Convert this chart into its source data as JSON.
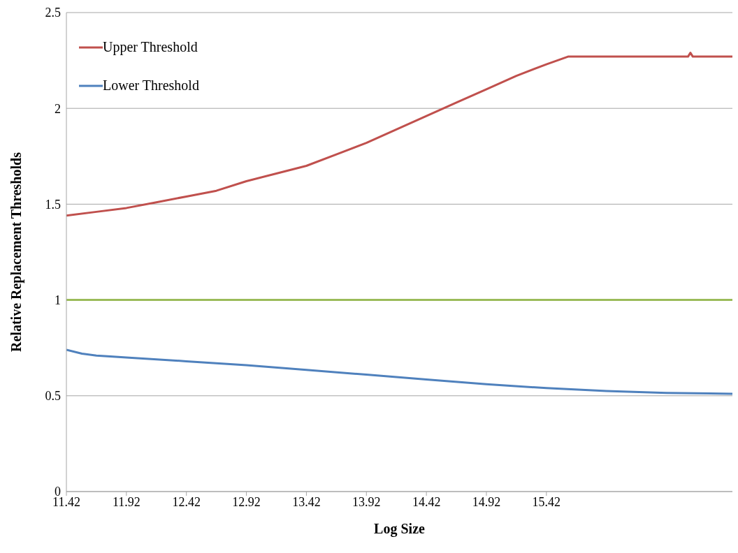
{
  "chart_data": {
    "type": "line",
    "xlabel": "Log Size",
    "ylabel": "Relative Replacement Thresholds",
    "xlim": [
      11.42,
      16.97
    ],
    "xticks": [
      11.42,
      11.92,
      12.42,
      12.92,
      13.42,
      13.92,
      14.42,
      14.92,
      15.42
    ],
    "ylim": [
      0,
      2.5
    ],
    "yticks": [
      0,
      0.5,
      1,
      1.5,
      2,
      2.5
    ],
    "grid": "y",
    "legend": "top left",
    "marker": "none",
    "line_style": "solid",
    "series": [
      {
        "name": "Upper Threshold",
        "color": "#c0504d",
        "x": [
          11.42,
          11.67,
          11.92,
          12.17,
          12.42,
          12.67,
          12.92,
          13.17,
          13.42,
          13.67,
          13.92,
          14.17,
          14.42,
          14.67,
          14.92,
          15.17,
          15.42,
          15.6,
          16.6,
          16.62,
          16.64,
          16.97
        ],
        "values": [
          1.44,
          1.46,
          1.48,
          1.51,
          1.54,
          1.57,
          1.62,
          1.66,
          1.7,
          1.76,
          1.82,
          1.89,
          1.96,
          2.03,
          2.1,
          2.17,
          2.23,
          2.27,
          2.27,
          2.29,
          2.27,
          2.27
        ]
      },
      {
        "name": "Lower Threshold",
        "color": "#4f81bd",
        "x": [
          11.42,
          11.55,
          11.67,
          11.92,
          12.42,
          12.92,
          13.42,
          13.92,
          14.42,
          14.92,
          15.42,
          15.92,
          16.42,
          16.97
        ],
        "values": [
          0.74,
          0.72,
          0.71,
          0.7,
          0.68,
          0.66,
          0.635,
          0.61,
          0.585,
          0.56,
          0.54,
          0.525,
          0.515,
          0.51
        ]
      }
    ],
    "ref_lines": [
      {
        "axis": "y",
        "value": 1,
        "color": "#9bbb59"
      }
    ]
  }
}
